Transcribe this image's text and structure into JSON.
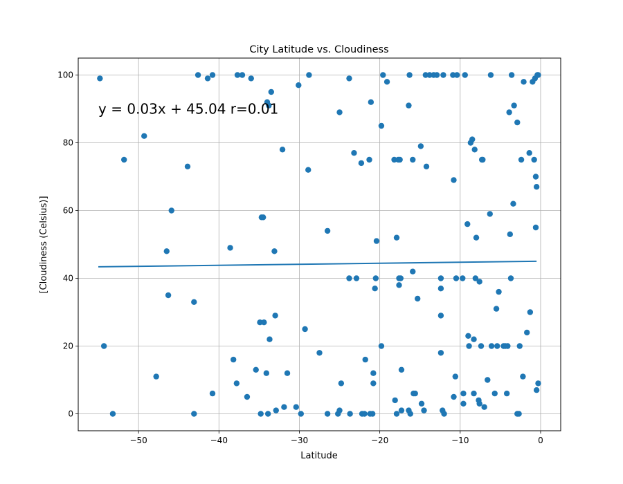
{
  "chart_data": {
    "type": "scatter",
    "title": "City Latitude vs. Cloudiness",
    "xlabel": "Latitude",
    "ylabel": "[Cloudiness (Celsius)]",
    "xlim": [
      -57.5,
      2.5
    ],
    "ylim": [
      -5,
      105
    ],
    "xticks": [
      -50,
      -40,
      -30,
      -20,
      -10,
      0
    ],
    "yticks": [
      0,
      20,
      40,
      60,
      80,
      100
    ],
    "grid": true,
    "point_color": "#1f77b4",
    "line_color": "#1f77b4",
    "annotation": {
      "text": "y = 0.03x + 45.04 r=0.01",
      "x": -55,
      "y": 90
    },
    "regression": {
      "slope": 0.03,
      "intercept": 45.04,
      "x_range": [
        -55,
        -0.5
      ]
    },
    "points": [
      [
        -54.8,
        99
      ],
      [
        -54.3,
        20
      ],
      [
        -53.2,
        0
      ],
      [
        -51.8,
        75
      ],
      [
        -49.3,
        82
      ],
      [
        -47.8,
        11
      ],
      [
        -46.5,
        48
      ],
      [
        -46.3,
        35
      ],
      [
        -45.9,
        60
      ],
      [
        -43.9,
        73
      ],
      [
        -43.1,
        33
      ],
      [
        -43.1,
        0
      ],
      [
        -42.6,
        100
      ],
      [
        -41.4,
        99
      ],
      [
        -40.8,
        100
      ],
      [
        -40.8,
        6
      ],
      [
        -38.6,
        49
      ],
      [
        -38.2,
        16
      ],
      [
        -37.8,
        9
      ],
      [
        -37.7,
        100
      ],
      [
        -37.1,
        100
      ],
      [
        -36.5,
        5
      ],
      [
        -36.0,
        99
      ],
      [
        -35.4,
        13
      ],
      [
        -34.9,
        27
      ],
      [
        -34.8,
        0
      ],
      [
        -34.7,
        58
      ],
      [
        -34.5,
        58
      ],
      [
        -34.4,
        27
      ],
      [
        -34.1,
        12
      ],
      [
        -34.0,
        92
      ],
      [
        -33.9,
        0
      ],
      [
        -33.8,
        91
      ],
      [
        -33.7,
        22
      ],
      [
        -33.5,
        95
      ],
      [
        -33.1,
        48
      ],
      [
        -33.0,
        29
      ],
      [
        -32.9,
        1
      ],
      [
        -32.1,
        78
      ],
      [
        -31.9,
        2
      ],
      [
        -31.5,
        12
      ],
      [
        -30.4,
        2
      ],
      [
        -30.1,
        97
      ],
      [
        -29.8,
        0
      ],
      [
        -29.3,
        25
      ],
      [
        -28.9,
        72
      ],
      [
        -28.8,
        100
      ],
      [
        -27.5,
        18
      ],
      [
        -26.5,
        54
      ],
      [
        -26.5,
        0
      ],
      [
        -25.2,
        0
      ],
      [
        -25.0,
        1
      ],
      [
        -25.0,
        89
      ],
      [
        -24.8,
        9
      ],
      [
        -23.8,
        40
      ],
      [
        -23.8,
        99
      ],
      [
        -23.7,
        0
      ],
      [
        -23.2,
        77
      ],
      [
        -22.9,
        40
      ],
      [
        -22.3,
        74
      ],
      [
        -22.2,
        0
      ],
      [
        -21.9,
        0
      ],
      [
        -21.8,
        16
      ],
      [
        -21.3,
        75
      ],
      [
        -21.1,
        92
      ],
      [
        -21.2,
        0
      ],
      [
        -20.9,
        0
      ],
      [
        -20.8,
        12
      ],
      [
        -20.8,
        9
      ],
      [
        -20.6,
        37
      ],
      [
        -20.5,
        40
      ],
      [
        -20.4,
        51
      ],
      [
        -19.8,
        20
      ],
      [
        -19.8,
        85
      ],
      [
        -19.6,
        100
      ],
      [
        -19.1,
        98
      ],
      [
        -18.2,
        75
      ],
      [
        -18.1,
        4
      ],
      [
        -17.9,
        0
      ],
      [
        -17.9,
        52
      ],
      [
        -17.7,
        75
      ],
      [
        -17.6,
        38
      ],
      [
        -17.6,
        40
      ],
      [
        -17.5,
        75
      ],
      [
        -17.4,
        40
      ],
      [
        -17.3,
        13
      ],
      [
        -17.3,
        1
      ],
      [
        -16.4,
        91
      ],
      [
        -16.4,
        1
      ],
      [
        -16.3,
        100
      ],
      [
        -16.2,
        0
      ],
      [
        -15.9,
        42
      ],
      [
        -15.9,
        75
      ],
      [
        -15.8,
        6
      ],
      [
        -15.6,
        6
      ],
      [
        -15.3,
        34
      ],
      [
        -14.9,
        79
      ],
      [
        -14.8,
        3
      ],
      [
        -14.5,
        1
      ],
      [
        -14.3,
        100
      ],
      [
        -14.2,
        73
      ],
      [
        -13.8,
        100
      ],
      [
        -13.3,
        100
      ],
      [
        -12.9,
        100
      ],
      [
        -12.4,
        40
      ],
      [
        -12.4,
        37
      ],
      [
        -12.4,
        29
      ],
      [
        -12.4,
        18
      ],
      [
        -12.2,
        1
      ],
      [
        -12.1,
        100
      ],
      [
        -12.0,
        0
      ],
      [
        -10.9,
        100
      ],
      [
        -10.8,
        69
      ],
      [
        -10.8,
        5
      ],
      [
        -10.6,
        11
      ],
      [
        -10.5,
        40
      ],
      [
        -10.4,
        100
      ],
      [
        -9.7,
        40
      ],
      [
        -9.6,
        6
      ],
      [
        -9.6,
        3
      ],
      [
        -9.4,
        100
      ],
      [
        -9.1,
        56
      ],
      [
        -9.0,
        23
      ],
      [
        -8.9,
        20
      ],
      [
        -8.7,
        80
      ],
      [
        -8.5,
        81
      ],
      [
        -8.3,
        22
      ],
      [
        -8.3,
        6
      ],
      [
        -8.2,
        78
      ],
      [
        -8.0,
        52
      ],
      [
        -8.1,
        40
      ],
      [
        -7.7,
        4
      ],
      [
        -7.6,
        3
      ],
      [
        -7.6,
        39
      ],
      [
        -7.4,
        20
      ],
      [
        -7.3,
        75
      ],
      [
        -7.2,
        75
      ],
      [
        -7.0,
        2
      ],
      [
        -6.6,
        10
      ],
      [
        -6.3,
        59
      ],
      [
        -6.2,
        100
      ],
      [
        -6.1,
        20
      ],
      [
        -5.7,
        6
      ],
      [
        -5.5,
        31
      ],
      [
        -5.4,
        20
      ],
      [
        -5.2,
        36
      ],
      [
        -4.6,
        20
      ],
      [
        -4.4,
        20
      ],
      [
        -4.2,
        6
      ],
      [
        -4.1,
        20
      ],
      [
        -3.9,
        89
      ],
      [
        -3.8,
        53
      ],
      [
        -3.7,
        40
      ],
      [
        -3.6,
        100
      ],
      [
        -3.4,
        62
      ],
      [
        -3.3,
        91
      ],
      [
        -2.9,
        86
      ],
      [
        -2.9,
        0
      ],
      [
        -2.7,
        0
      ],
      [
        -2.6,
        20
      ],
      [
        -2.4,
        75
      ],
      [
        -2.2,
        11
      ],
      [
        -2.1,
        98
      ],
      [
        -1.7,
        24
      ],
      [
        -1.4,
        77
      ],
      [
        -1.3,
        30
      ],
      [
        -1.0,
        98
      ],
      [
        -0.8,
        75
      ],
      [
        -0.7,
        99
      ],
      [
        -0.6,
        70
      ],
      [
        -0.6,
        55
      ],
      [
        -0.5,
        7
      ],
      [
        -0.5,
        67
      ],
      [
        -0.4,
        100
      ],
      [
        -0.3,
        100
      ],
      [
        -0.3,
        9
      ]
    ]
  }
}
